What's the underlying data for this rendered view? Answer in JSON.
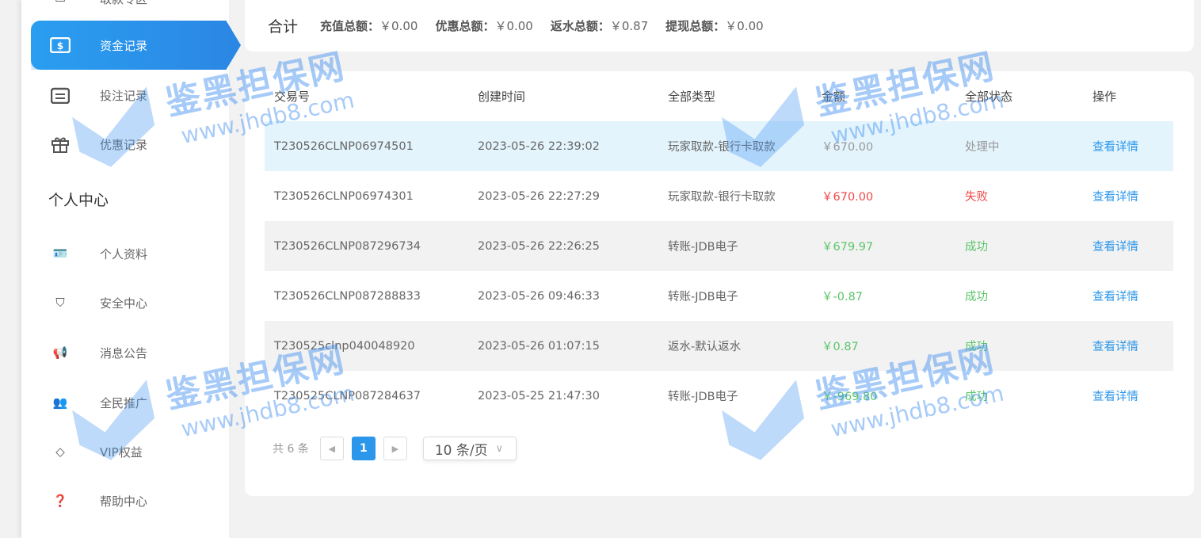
{
  "sidebar": {
    "items": [
      {
        "label": "取款专区",
        "icon": "card-icon"
      },
      {
        "label": "资金记录",
        "icon": "money-ticket-icon",
        "active": true
      },
      {
        "label": "投注记录",
        "icon": "calendar-icon"
      },
      {
        "label": "优惠记录",
        "icon": "gift-icon"
      }
    ],
    "section_title": "个人中心",
    "personal": [
      {
        "label": "个人资料",
        "icon": "id-card-icon"
      },
      {
        "label": "安全中心",
        "icon": "shield-icon"
      },
      {
        "label": "消息公告",
        "icon": "megaphone-icon"
      },
      {
        "label": "全民推广",
        "icon": "users-icon"
      },
      {
        "label": "VIP权益",
        "icon": "diamond-icon"
      },
      {
        "label": "帮助中心",
        "icon": "help-icon"
      }
    ]
  },
  "summary": {
    "title": "合计",
    "items": [
      {
        "label": "充值总额：",
        "value": "￥0.00"
      },
      {
        "label": "优惠总额：",
        "value": "￥0.00"
      },
      {
        "label": "返水总额：",
        "value": "￥0.87"
      },
      {
        "label": "提现总额：",
        "value": "￥0.00"
      }
    ]
  },
  "table": {
    "headers": [
      "交易号",
      "创建时间",
      "全部类型",
      "金额",
      "全部状态",
      "操作"
    ],
    "rows": [
      {
        "id": "T230526CLNP06974501",
        "time": "2023-05-26 22:39:02",
        "type": "玩家取款-银行卡取款",
        "amount": "￥670.00",
        "status": "处理中",
        "action": "查看详情",
        "color": "#999"
      },
      {
        "id": "T230526CLNP06974301",
        "time": "2023-05-26 22:27:29",
        "type": "玩家取款-银行卡取款",
        "amount": "￥670.00",
        "status": "失败",
        "action": "查看详情",
        "color": "#f04848"
      },
      {
        "id": "T230526CLNP087296734",
        "time": "2023-05-26 22:26:25",
        "type": "转账-JDB电子",
        "amount": "￥679.97",
        "status": "成功",
        "action": "查看详情",
        "color": "#5cc66a"
      },
      {
        "id": "T230526CLNP087288833",
        "time": "2023-05-26 09:46:33",
        "type": "转账-JDB电子",
        "amount": "￥-0.87",
        "status": "成功",
        "action": "查看详情",
        "color": "#5cc66a"
      },
      {
        "id": "T230525clnp040048920",
        "time": "2023-05-26 01:07:15",
        "type": "返水-默认返水",
        "amount": "￥0.87",
        "status": "成功",
        "action": "查看详情",
        "color": "#5cc66a"
      },
      {
        "id": "T230525CLNP087284637",
        "time": "2023-05-25 21:47:30",
        "type": "转账-JDB电子",
        "amount": "￥-969.80",
        "status": "成功",
        "action": "查看详情",
        "color": "#5cc66a"
      }
    ]
  },
  "pagination": {
    "total": "共 6 条",
    "current": "1",
    "prev": "◀",
    "next": "▶",
    "page_size": "10 条/页"
  },
  "watermark": {
    "text": "鉴黑担保网",
    "url": "www.jhdb8.com"
  }
}
